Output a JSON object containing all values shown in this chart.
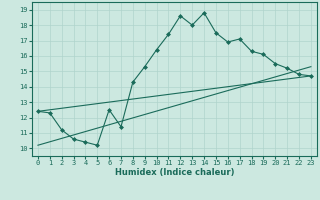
{
  "xlabel": "Humidex (Indice chaleur)",
  "bg_color": "#cce8e0",
  "line_color": "#1a6b5a",
  "xlim": [
    -0.5,
    23.5
  ],
  "ylim": [
    9.5,
    19.5
  ],
  "xticks": [
    0,
    1,
    2,
    3,
    4,
    5,
    6,
    7,
    8,
    9,
    10,
    11,
    12,
    13,
    14,
    15,
    16,
    17,
    18,
    19,
    20,
    21,
    22,
    23
  ],
  "yticks": [
    10,
    11,
    12,
    13,
    14,
    15,
    16,
    17,
    18,
    19
  ],
  "line1_x": [
    0,
    1,
    2,
    3,
    4,
    5,
    6,
    7,
    8,
    9,
    10,
    11,
    12,
    13,
    14,
    15,
    16,
    17,
    18,
    19,
    20,
    21,
    22,
    23
  ],
  "line1_y": [
    12.4,
    12.3,
    11.2,
    10.6,
    10.4,
    10.2,
    12.5,
    11.4,
    14.3,
    15.3,
    16.4,
    17.4,
    18.6,
    18.0,
    18.8,
    17.5,
    16.9,
    17.1,
    16.3,
    16.1,
    15.5,
    15.2,
    14.8,
    14.7
  ],
  "line2_x": [
    0,
    23
  ],
  "line2_y": [
    12.4,
    14.7
  ],
  "line3_x": [
    0,
    23
  ],
  "line3_y": [
    10.2,
    15.3
  ],
  "grid_color": "#b0d4cc"
}
